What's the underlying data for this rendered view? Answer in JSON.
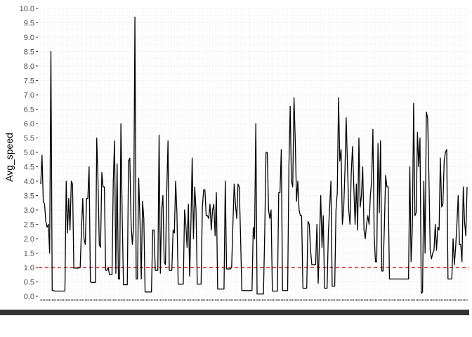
{
  "chart_data": {
    "type": "line",
    "title": "",
    "xlabel": "",
    "ylabel": "Avg_speed",
    "ylim": [
      0,
      10
    ],
    "yticks": [
      "0.0",
      "0.5",
      "1.0",
      "1.5",
      "2.0",
      "2.5",
      "3.0",
      "3.5",
      "4.0",
      "4.5",
      "5.0",
      "5.5",
      "6.0",
      "6.5",
      "7.0",
      "7.5",
      "8.0",
      "8.5",
      "9.0",
      "9.5",
      "10.0"
    ],
    "x_tick_labels_note": "dense unreadable category labels",
    "grid": true,
    "reference_line": {
      "y": 1.0,
      "color": "#e41a1c",
      "style": "dashed"
    },
    "series": [
      {
        "color": "#000000",
        "values": [
          3.9,
          4.9,
          3.3,
          3.2,
          2.6,
          2.4,
          2.5,
          1.5,
          8.5,
          0.2,
          0.2,
          0.18,
          0.18,
          0.18,
          0.18,
          0.18,
          0.18,
          0.18,
          0.18,
          0.18,
          4.0,
          2.2,
          3.4,
          2.3,
          4.0,
          3.9,
          0.98,
          0.98,
          0.98,
          0.98,
          0.98,
          1.0,
          2.3,
          3.4,
          2.0,
          1.8,
          3.4,
          3.4,
          4.5,
          0.5,
          0.48,
          0.48,
          0.48,
          0.48,
          5.5,
          4.0,
          1.8,
          1.7,
          4.3,
          3.8,
          3.8,
          0.9,
          0.9,
          1.0,
          0.75,
          0.75,
          0.75,
          4.0,
          5.4,
          0.8,
          4.6,
          0.6,
          0.6,
          6.0,
          2.8,
          0.4,
          0.4,
          0.4,
          0.4,
          4.7,
          4.8,
          2.5,
          1.8,
          2.5,
          9.7,
          0.6,
          0.6,
          4.1,
          2.6,
          0.6,
          3.3,
          2.7,
          0.15,
          0.15,
          0.15,
          0.15,
          0.15,
          0.15,
          2.3,
          2.3,
          0.9,
          0.9,
          0.9,
          5.6,
          0.8,
          3.0,
          3.5,
          1.2,
          1.1,
          3.6,
          5.4,
          0.9,
          0.9,
          0.9,
          2.3,
          2.2,
          4.0,
          2.9,
          0.42,
          0.42,
          0.42,
          0.42,
          0.42,
          3.0,
          2.5,
          1.7,
          3.2,
          0.7,
          2.5,
          4.8,
          2.0,
          3.8,
          3.0,
          0.42,
          0.42,
          0.42,
          0.42,
          3.1,
          3.7,
          3.7,
          2.8,
          2.8,
          2.7,
          3.2,
          2.3,
          3.0,
          3.2,
          2.1,
          3.6,
          0.25,
          0.25,
          0.25,
          0.25,
          0.25,
          0.25,
          4.0,
          0.95,
          0.95,
          0.95,
          0.95,
          1.0,
          2.5,
          3.9,
          3.2,
          2.7,
          3.9,
          3.8,
          2.1,
          0.2,
          0.2,
          0.2,
          0.2,
          0.2,
          0.2,
          0.2,
          0.2,
          0.2,
          2.4,
          2.0,
          6.0,
          0.08,
          0.08,
          0.08,
          0.08,
          0.08,
          0.08,
          2.2,
          5.0,
          5.0,
          3.0,
          2.7,
          3.0,
          0.18,
          0.18,
          0.18,
          0.18,
          0.18,
          3.6,
          3.6,
          5.1,
          0.2,
          0.2,
          0.2,
          0.2,
          0.2,
          4.5,
          6.6,
          4.0,
          3.8,
          6.9,
          5.4,
          3.3,
          4.0,
          3.0,
          2.8,
          2.8,
          0.28,
          0.28,
          0.28,
          0.28,
          2.6,
          2.5,
          1.6,
          1.1,
          1.1,
          1.1,
          1.1,
          2.5,
          0.45,
          1.9,
          3.5,
          1.7,
          2.8,
          0.28,
          0.28,
          0.28,
          2.2,
          3.1,
          4.0,
          0.35,
          0.35,
          0.35,
          3.0,
          3.6,
          6.9,
          4.7,
          5.1,
          2.5,
          3.0,
          4.3,
          6.2,
          4.6,
          3.0,
          2.5,
          4.3,
          5.2,
          3.8,
          2.5,
          3.9,
          2.3,
          5.5,
          3.1,
          3.5,
          4.5,
          2.3,
          2.0,
          2.5,
          2.8,
          2.5,
          3.5,
          4.0,
          5.8,
          2.1,
          1.2,
          1.2,
          5.3,
          2.9,
          5.4,
          0.88,
          0.88,
          2.4,
          4.2,
          3.8,
          3.8,
          0.6,
          0.6,
          0.6,
          0.6,
          0.6,
          0.6,
          0.6,
          0.6,
          0.6,
          0.6,
          0.6,
          0.6,
          0.6,
          0.6,
          0.6,
          0.6,
          4.5,
          1.2,
          2.4,
          6.7,
          2.8,
          2.9,
          5.7,
          4.5,
          5.5,
          0.1,
          0.15,
          4.0,
          1.5,
          6.4,
          6.2,
          4.2,
          1.6,
          1.3,
          1.5,
          1.6,
          2.5,
          1.6,
          2.4,
          2.3,
          4.8,
          3.1,
          3.2,
          4.7,
          5.0,
          5.1,
          0.6,
          0.6,
          0.6,
          0.6,
          2.0,
          1.1,
          1.7,
          2.5,
          3.5,
          1.8,
          1.8,
          1.2,
          3.8,
          2.6,
          2.1,
          3.8
        ]
      }
    ]
  }
}
